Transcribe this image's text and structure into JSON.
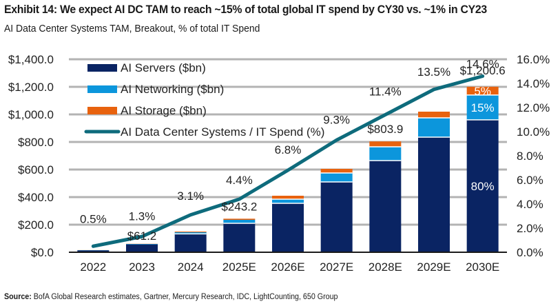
{
  "header": {
    "title": "Exhibit 14: We expect AI DC TAM to reach ~15% of total global IT spend by CY30 vs. ~1% in CY23",
    "subtitle": "AI Data Center Systems TAM, Breakout, % of total IT Spend"
  },
  "footer": {
    "source_label": "Source:",
    "source_text": " BofA Global Research estimates, Gartner, Mercury Research, IDC, LightCounting, 650 Group"
  },
  "chart_data": {
    "type": "bar",
    "subtype": "stacked-bar-with-line-secondary-axis",
    "title": "Exhibit 14: We expect AI DC TAM to reach ~15% of total global IT spend by CY30 vs. ~1% in CY23",
    "subtitle": "AI Data Center Systems TAM, Breakout, % of total IT Spend",
    "xlabel": "",
    "ylabel": "",
    "categories": [
      "2022",
      "2023",
      "2024",
      "2025E",
      "2026E",
      "2027E",
      "2028E",
      "2029E",
      "2030E"
    ],
    "ylim": [
      0,
      1400
    ],
    "y_ticks": [
      0,
      200,
      400,
      600,
      800,
      1000,
      1200,
      1400
    ],
    "y_tick_labels": [
      "$0.0",
      "$200.0",
      "$400.0",
      "$600.0",
      "$800.0",
      "$1,000.0",
      "$1,200.0",
      "$1,400.0"
    ],
    "y2lim": [
      0,
      16
    ],
    "y2_ticks": [
      0,
      2,
      4,
      6,
      8,
      10,
      12,
      14,
      16
    ],
    "y2_tick_labels": [
      "0.0%",
      "2.0%",
      "4.0%",
      "6.0%",
      "8.0%",
      "10.0%",
      "12.0%",
      "14.0%",
      "16.0%"
    ],
    "grid": true,
    "legend_position": "top-left",
    "series": [
      {
        "name": "AI Servers ($bn)",
        "type": "bar",
        "axis": "left",
        "color": "#0a2463",
        "values": [
          14,
          57,
          133,
          210,
          355,
          510,
          665,
          835,
          960.5
        ]
      },
      {
        "name": "AI Networking ($bn)",
        "type": "bar",
        "axis": "left",
        "color": "#0c96dc",
        "values": [
          1,
          3,
          12,
          25,
          30,
          65,
          100,
          140,
          180.1
        ]
      },
      {
        "name": "AI Storage ($bn)",
        "type": "bar",
        "axis": "left",
        "color": "#e8620e",
        "values": [
          0.5,
          1.2,
          5,
          8.2,
          25,
          30,
          38.9,
          45,
          60
        ]
      },
      {
        "name": "AI Data Center Systems / IT Spend (%)",
        "type": "line",
        "axis": "right",
        "color": "#0e6b7c",
        "values": [
          0.5,
          1.3,
          3.1,
          4.4,
          6.8,
          9.3,
          11.4,
          13.5,
          14.6
        ]
      }
    ],
    "line_labels": [
      "0.5%",
      "1.3%",
      "3.1%",
      "4.4%",
      "6.8%",
      "9.3%",
      "11.4%",
      "13.5%",
      "14.6%"
    ],
    "total_labels": [
      {
        "category": "2023",
        "text": "$61.2"
      },
      {
        "category": "2025E",
        "text": "$243.2"
      },
      {
        "category": "2028E",
        "text": "$803.9"
      },
      {
        "category": "2030E",
        "text": "$1,200.6"
      }
    ],
    "segment_share_labels": [
      {
        "category": "2030E",
        "series": "AI Servers ($bn)",
        "text": "80%"
      },
      {
        "category": "2030E",
        "series": "AI Networking ($bn)",
        "text": "15%"
      },
      {
        "category": "2030E",
        "series": "AI Storage ($bn)",
        "text": "5%"
      }
    ]
  }
}
